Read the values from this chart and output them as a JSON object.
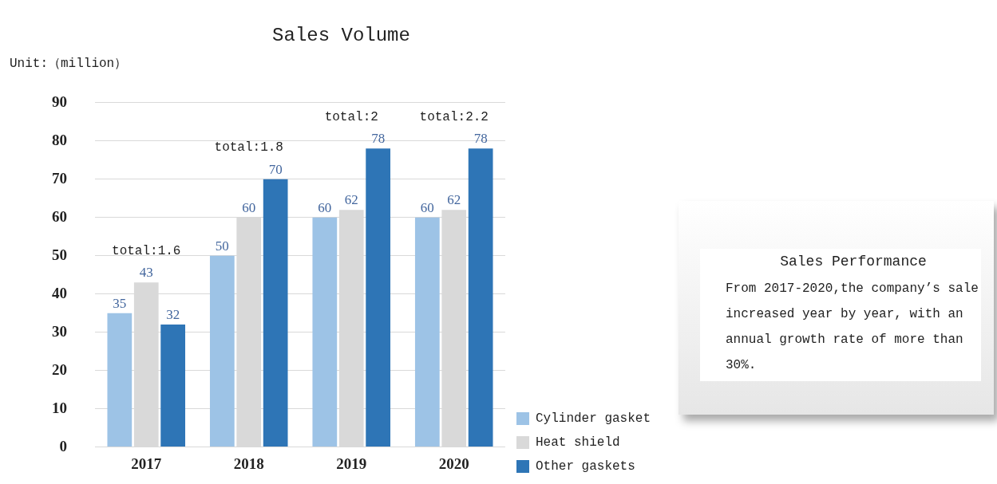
{
  "chart_data": {
    "type": "bar",
    "title": "Sales Volume",
    "ylabel": "Unit:（million）",
    "categories": [
      "2017",
      "2018",
      "2019",
      "2020"
    ],
    "series": [
      {
        "name": "Cylinder gasket",
        "color": "#9dc3e6",
        "values": [
          35,
          50,
          60,
          60
        ]
      },
      {
        "name": "Heat shield",
        "color": "#d9d9d9",
        "values": [
          43,
          60,
          62,
          62
        ]
      },
      {
        "name": "Other gaskets",
        "color": "#2e75b6",
        "values": [
          32,
          70,
          78,
          78
        ]
      }
    ],
    "ylim": [
      0,
      90
    ],
    "yticks": [
      0,
      10,
      20,
      30,
      40,
      50,
      60,
      70,
      80,
      90
    ],
    "grid": "y",
    "legend": "bottom right",
    "data_labels": true,
    "annotations": [
      "total:1.6",
      "total:1.8",
      "total:2",
      "total:2.2",
      "Sales Performance",
      "From 2017-2020,the company’s sale increased year by year, with an annual growth rate of more than 30%."
    ]
  }
}
